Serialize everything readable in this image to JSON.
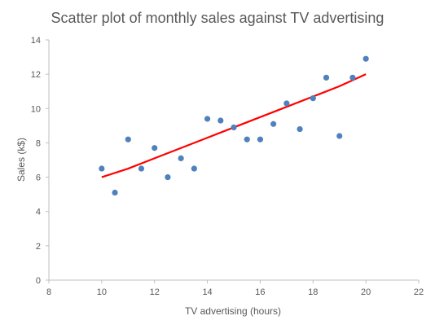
{
  "chart_data": {
    "type": "scatter",
    "title": "Scatter plot of monthly sales against TV advertising",
    "xlabel": "TV advertising (hours)",
    "ylabel": "Sales (k$)",
    "xlim": [
      8,
      22
    ],
    "ylim": [
      0,
      14
    ],
    "x_ticks": [
      8,
      10,
      12,
      14,
      16,
      18,
      20,
      22
    ],
    "y_ticks": [
      0,
      2,
      4,
      6,
      8,
      10,
      12,
      14
    ],
    "grid": false,
    "legend": "none",
    "series": [
      {
        "type": "scatter",
        "color": "#4f81bd",
        "points": [
          {
            "x": 10.0,
            "y": 6.5
          },
          {
            "x": 10.5,
            "y": 5.1
          },
          {
            "x": 11.0,
            "y": 8.2
          },
          {
            "x": 11.5,
            "y": 6.5
          },
          {
            "x": 12.0,
            "y": 7.7
          },
          {
            "x": 12.5,
            "y": 6.0
          },
          {
            "x": 13.0,
            "y": 7.1
          },
          {
            "x": 13.5,
            "y": 6.5
          },
          {
            "x": 14.0,
            "y": 9.4
          },
          {
            "x": 14.5,
            "y": 9.3
          },
          {
            "x": 15.0,
            "y": 8.9
          },
          {
            "x": 15.5,
            "y": 8.2
          },
          {
            "x": 16.0,
            "y": 8.2
          },
          {
            "x": 16.5,
            "y": 9.1
          },
          {
            "x": 17.0,
            "y": 10.3
          },
          {
            "x": 17.5,
            "y": 8.8
          },
          {
            "x": 18.0,
            "y": 10.6
          },
          {
            "x": 18.5,
            "y": 11.8
          },
          {
            "x": 19.0,
            "y": 8.4
          },
          {
            "x": 19.5,
            "y": 11.8
          },
          {
            "x": 20.0,
            "y": 12.9
          }
        ]
      },
      {
        "type": "line",
        "color": "#ff0000",
        "points": [
          {
            "x": 10.0,
            "y": 6.0
          },
          {
            "x": 11.0,
            "y": 6.5
          },
          {
            "x": 12.0,
            "y": 7.1
          },
          {
            "x": 13.0,
            "y": 7.7
          },
          {
            "x": 14.0,
            "y": 8.3
          },
          {
            "x": 15.0,
            "y": 8.9
          },
          {
            "x": 16.0,
            "y": 9.5
          },
          {
            "x": 17.0,
            "y": 10.1
          },
          {
            "x": 18.0,
            "y": 10.7
          },
          {
            "x": 19.0,
            "y": 11.3
          },
          {
            "x": 20.0,
            "y": 12.0
          }
        ]
      }
    ]
  }
}
